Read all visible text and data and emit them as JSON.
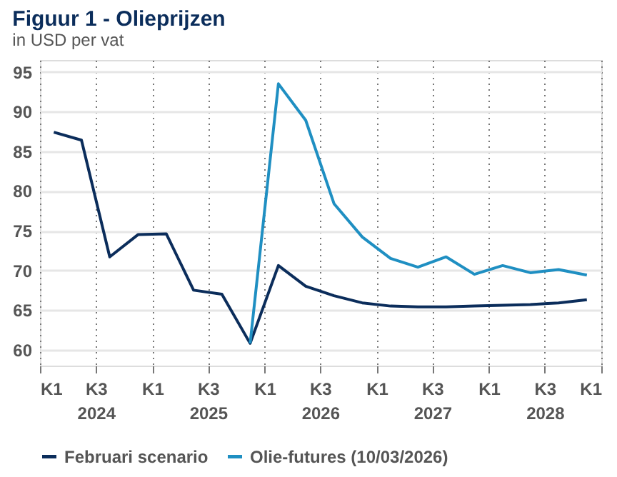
{
  "chart_data": {
    "type": "line",
    "title": "Figuur 1 - Olieprijzen",
    "subtitle": "in USD per vat",
    "x": [
      "2024-02-15",
      "2024-05-15",
      "2024-08-15",
      "2024-11-15",
      "2025-02-15",
      "2025-05-15",
      "2025-08-15",
      "2025-11-15",
      "2026-02-15",
      "2026-05-15",
      "2026-08-15",
      "2026-11-15",
      "2027-02-15",
      "2027-05-15",
      "2027-08-15",
      "2027-11-15",
      "2028-02-15",
      "2028-05-15",
      "2028-08-15",
      "2028-11-15"
    ],
    "series": [
      {
        "name": "Februari scenario",
        "color": "#0b2d5b",
        "values": [
          87.4,
          86.4,
          71.7,
          74.5,
          74.6,
          67.5,
          67.0,
          60.8,
          70.6,
          68.0,
          66.8,
          65.9,
          65.5,
          65.4,
          65.4,
          65.5,
          65.6,
          65.7,
          65.9,
          66.3
        ]
      },
      {
        "name": "Olie-futures (10/03/2026)",
        "color": "#1f8fc2",
        "values": [
          null,
          null,
          null,
          null,
          null,
          null,
          null,
          60.8,
          93.5,
          88.9,
          78.4,
          74.2,
          71.5,
          70.4,
          71.7,
          69.5,
          70.6,
          69.7,
          70.1,
          69.4
        ]
      }
    ],
    "xlim": [
      "2024-01-01",
      "2029-01-01"
    ],
    "xticks": [
      {
        "value": "2024-01-01",
        "label": "K1"
      },
      {
        "value": "2024-07-01",
        "label": "K3\n2024"
      },
      {
        "value": "2025-01-01",
        "label": "K1"
      },
      {
        "value": "2025-07-01",
        "label": "K3\n2025"
      },
      {
        "value": "2026-01-01",
        "label": "K1"
      },
      {
        "value": "2026-07-01",
        "label": "K3\n2026"
      },
      {
        "value": "2027-01-01",
        "label": "K1"
      },
      {
        "value": "2027-07-01",
        "label": "K3\n2027"
      },
      {
        "value": "2028-01-01",
        "label": "K1"
      },
      {
        "value": "2028-07-01",
        "label": "K3\n2028"
      },
      {
        "value": "2029-01-01",
        "label": "K1"
      }
    ],
    "ylim": [
      58,
      96.5
    ],
    "yticks": [
      60,
      65,
      70,
      75,
      80,
      85,
      90,
      95
    ],
    "grid": true,
    "legend": "bottom",
    "marker": "none",
    "line_style": "solid"
  }
}
